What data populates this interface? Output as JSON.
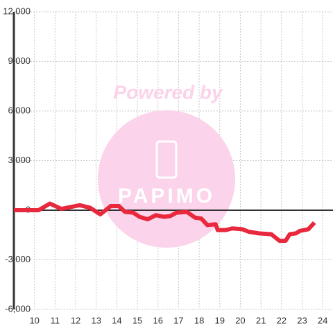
{
  "chart_data": {
    "type": "line",
    "watermark_text": "Powered by",
    "watermark_logo": "PAPIMO",
    "x": [
      9,
      10.2,
      10.75,
      11.3,
      12.2,
      12.7,
      13.2,
      13.7,
      14.1,
      14.4,
      14.8,
      15.1,
      15.5,
      15.9,
      16.3,
      16.6,
      16.9,
      17.4,
      17.8,
      18.1,
      18.4,
      18.8,
      18.9,
      19.3,
      19.6,
      20.1,
      20.4,
      20.9,
      21.5,
      21.6,
      21.9,
      22.2,
      22.4,
      22.7,
      22.9,
      23.3,
      23.6
    ],
    "series": [
      {
        "color": "#e8283c",
        "values": [
          0,
          0,
          400,
          80,
          300,
          150,
          -250,
          250,
          250,
          -100,
          -150,
          -400,
          -550,
          -300,
          -400,
          -350,
          -150,
          -100,
          -450,
          -500,
          -900,
          -850,
          -1200,
          -1200,
          -1100,
          -1150,
          -1300,
          -1400,
          -1450,
          -1550,
          -1850,
          -1850,
          -1450,
          -1400,
          -1250,
          -1150,
          -750
        ]
      }
    ],
    "xlim": [
      9,
      24.5
    ],
    "xticks": [
      10,
      11,
      12,
      13,
      14,
      15,
      16,
      17,
      18,
      19,
      20,
      21,
      22,
      23,
      24
    ],
    "ylim": [
      -6000,
      12000
    ],
    "yticks": [
      {
        "value": -6000,
        "label": "-6,000"
      },
      {
        "value": -3000,
        "label": "-3,000"
      },
      0,
      {
        "value": 3000,
        "label": "3,000"
      },
      {
        "value": 6000,
        "label": "6,000"
      },
      {
        "value": 9000,
        "label": "9,000"
      },
      {
        "value": 12000,
        "label": "12,000"
      }
    ],
    "grid": true
  }
}
